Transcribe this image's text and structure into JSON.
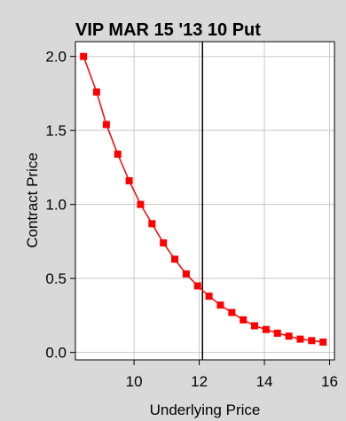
{
  "chart_data": {
    "type": "line",
    "title": "VIP MAR 15 '13 10 Put",
    "xlabel": "Underlying Price",
    "ylabel": "Contract Price",
    "xlim": [
      8.2,
      16.15
    ],
    "ylim": [
      -0.05,
      2.1
    ],
    "xticks": [
      10,
      12,
      14,
      16
    ],
    "xtick_labels": [
      "10",
      "12",
      "14",
      "16"
    ],
    "yticks": [
      0.0,
      0.5,
      1.0,
      1.5,
      2.0
    ],
    "ytick_labels": [
      "0.0",
      "0.5",
      "1.0",
      "1.5",
      "2.0"
    ],
    "grid": true,
    "series": [
      {
        "color": "#ff0000",
        "marker": "square",
        "x": [
          8.45,
          8.85,
          9.15,
          9.5,
          9.85,
          10.2,
          10.55,
          10.9,
          11.25,
          11.6,
          11.95,
          12.3,
          12.65,
          13.0,
          13.35,
          13.7,
          14.05,
          14.4,
          14.75,
          15.1,
          15.45,
          15.8
        ],
        "y": [
          2.0,
          1.76,
          1.54,
          1.34,
          1.16,
          1.0,
          0.87,
          0.74,
          0.63,
          0.53,
          0.45,
          0.38,
          0.32,
          0.27,
          0.22,
          0.18,
          0.155,
          0.13,
          0.11,
          0.09,
          0.08,
          0.07
        ]
      }
    ],
    "vline": {
      "x": 12.1,
      "color": "#000000"
    }
  }
}
